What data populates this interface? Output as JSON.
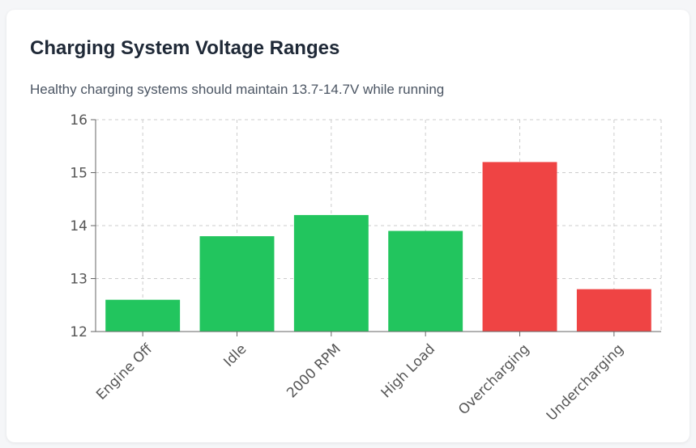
{
  "title": "Charging System Voltage Ranges",
  "subtitle": "Healthy charging systems should maintain 13.7-14.7V while running",
  "colors": {
    "normal": "#22c55e",
    "abnormal": "#ef4444",
    "grid": "#cccccc",
    "axis": "#666666"
  },
  "chart_data": {
    "type": "bar",
    "categories": [
      "Engine Off",
      "Idle",
      "2000 RPM",
      "High Load",
      "Overcharging",
      "Undercharging"
    ],
    "values": [
      12.6,
      13.8,
      14.2,
      13.9,
      15.2,
      12.8
    ],
    "bar_colors": [
      "#22c55e",
      "#22c55e",
      "#22c55e",
      "#22c55e",
      "#ef4444",
      "#ef4444"
    ],
    "ylim": [
      12,
      16
    ],
    "yticks": [
      12,
      13,
      14,
      15,
      16
    ],
    "grid": true,
    "legend": "none",
    "xlabel": "",
    "ylabel": ""
  }
}
